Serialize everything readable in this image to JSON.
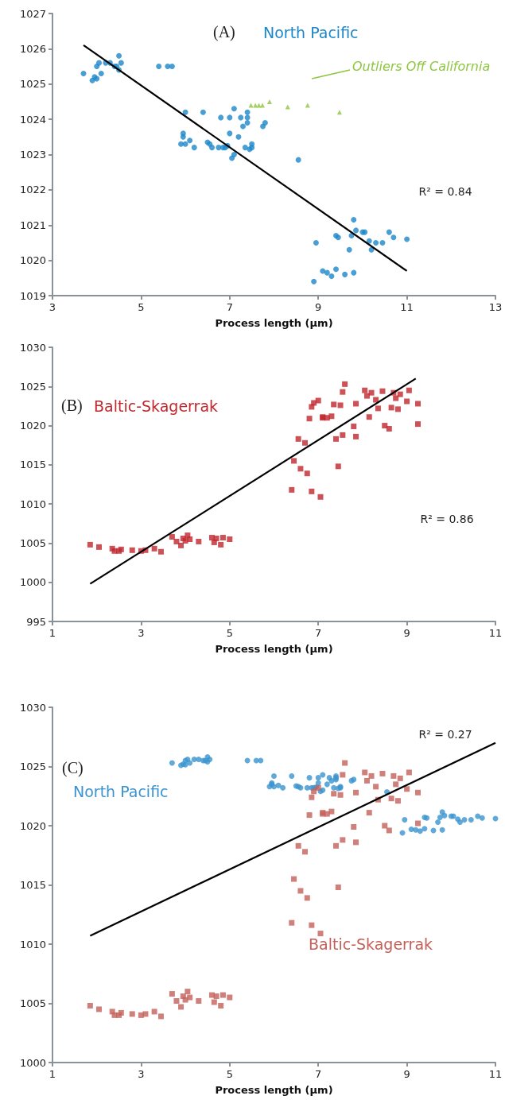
{
  "chart_data": [
    {
      "type": "scatter",
      "title": "(A)",
      "xlabel": "Process length (µm)",
      "xlim": [
        3,
        13
      ],
      "xticks": [
        3,
        5,
        7,
        9,
        11,
        13
      ],
      "ylim": [
        1019,
        1027
      ],
      "yticks": [
        1019,
        1020,
        1021,
        1022,
        1023,
        1024,
        1025,
        1026,
        1027
      ],
      "grid": false,
      "annotations": [
        "R² = 0.84"
      ],
      "series": [
        {
          "name": "North Pacific",
          "color": "#1b87c9",
          "marker": "circle",
          "x": [
            3.7,
            3.9,
            3.95,
            4.0,
            4.05,
            4.0,
            4.1,
            4.2,
            4.3,
            4.4,
            4.5,
            4.5,
            4.55,
            4.45,
            5.4,
            5.6,
            5.7,
            6.0,
            5.9,
            5.95,
            5.95,
            6.0,
            6.1,
            6.2,
            6.4,
            6.5,
            6.55,
            6.6,
            6.75,
            6.8,
            6.85,
            6.9,
            6.95,
            7.0,
            7.0,
            7.05,
            7.1,
            7.1,
            7.2,
            7.25,
            7.3,
            7.35,
            7.4,
            7.4,
            7.4,
            7.45,
            7.5,
            7.5,
            7.75,
            7.8,
            8.55,
            8.9,
            8.95,
            9.1,
            9.2,
            9.3,
            9.4,
            9.4,
            9.45,
            9.6,
            9.7,
            9.75,
            9.8,
            9.85,
            9.8,
            10.0,
            10.05,
            10.15,
            10.2,
            10.3,
            10.45,
            10.6,
            10.7,
            11.0
          ],
          "values": [
            1025.3,
            1025.1,
            1025.2,
            1025.5,
            1025.6,
            1025.15,
            1025.3,
            1025.6,
            1025.6,
            1025.5,
            1025.8,
            1025.4,
            1025.6,
            1025.5,
            1025.5,
            1025.5,
            1025.5,
            1024.2,
            1023.3,
            1023.5,
            1023.6,
            1023.3,
            1023.4,
            1023.2,
            1024.2,
            1023.35,
            1023.3,
            1023.2,
            1023.2,
            1024.05,
            1023.2,
            1023.2,
            1023.25,
            1024.05,
            1023.6,
            1022.9,
            1023.0,
            1024.3,
            1023.5,
            1024.05,
            1023.8,
            1023.2,
            1024.2,
            1024.05,
            1023.9,
            1023.15,
            1023.2,
            1023.3,
            1023.8,
            1023.9,
            1022.85,
            1019.4,
            1020.5,
            1019.7,
            1019.65,
            1019.55,
            1020.7,
            1019.75,
            1020.65,
            1019.6,
            1020.3,
            1020.7,
            1021.15,
            1020.85,
            1019.65,
            1020.8,
            1020.8,
            1020.55,
            1020.3,
            1020.5,
            1020.5,
            1020.8,
            1020.65,
            1020.6
          ]
        },
        {
          "name": "Outliers Off California",
          "color": "#8dc63f",
          "marker": "triangle",
          "x": [
            7.48,
            7.58,
            7.66,
            7.74,
            7.9,
            8.31,
            8.76,
            9.48
          ],
          "values": [
            1024.4,
            1024.4,
            1024.4,
            1024.4,
            1024.5,
            1024.35,
            1024.4,
            1024.2
          ]
        },
        {
          "type": "line",
          "color": "#000000",
          "marker": "none",
          "x": [
            3.7,
            11.0
          ],
          "values": [
            1026.1,
            1019.7
          ]
        }
      ]
    },
    {
      "type": "scatter",
      "title": "(B)",
      "xlabel": "Process length (µm)",
      "xlim": [
        1,
        11
      ],
      "xticks": [
        1,
        3,
        5,
        7,
        9,
        11
      ],
      "ylim": [
        995,
        1030
      ],
      "yticks": [
        995,
        1000,
        1005,
        1010,
        1015,
        1020,
        1025,
        1030
      ],
      "grid": false,
      "annotations": [
        "R² = 0.86"
      ],
      "series": [
        {
          "name": "Baltic-Skagerrak",
          "color": "#c1272d",
          "marker": "square",
          "x": [
            1.85,
            2.05,
            2.35,
            2.4,
            2.5,
            2.55,
            2.8,
            3.0,
            3.1,
            3.3,
            3.45,
            3.7,
            3.8,
            3.9,
            3.95,
            4.05,
            4.0,
            4.1,
            4.3,
            4.6,
            4.65,
            4.7,
            4.8,
            4.85,
            5.0,
            6.4,
            6.45,
            6.55,
            6.6,
            6.7,
            6.75,
            6.8,
            6.85,
            6.85,
            6.9,
            7.0,
            7.05,
            7.1,
            7.1,
            7.2,
            7.3,
            7.35,
            7.4,
            7.45,
            7.5,
            7.55,
            7.6,
            7.55,
            7.8,
            7.85,
            7.85,
            8.05,
            8.1,
            8.2,
            8.15,
            8.3,
            8.35,
            8.45,
            8.5,
            8.6,
            8.65,
            8.7,
            8.75,
            8.8,
            8.85,
            9.0,
            9.05,
            9.25,
            9.25
          ],
          "values": [
            1004.8,
            1004.5,
            1004.3,
            1004.0,
            1004.0,
            1004.2,
            1004.1,
            1004.0,
            1004.1,
            1004.3,
            1003.9,
            1005.8,
            1005.2,
            1004.7,
            1005.6,
            1006.0,
            1005.3,
            1005.5,
            1005.2,
            1005.7,
            1005.1,
            1005.6,
            1004.8,
            1005.7,
            1005.5,
            1011.8,
            1015.5,
            1018.3,
            1014.5,
            1017.8,
            1013.9,
            1020.9,
            1011.6,
            1022.4,
            1022.9,
            1023.2,
            1010.9,
            1021.1,
            1021.0,
            1021.0,
            1021.2,
            1022.7,
            1018.3,
            1014.8,
            1022.6,
            1024.3,
            1025.3,
            1018.8,
            1019.9,
            1022.8,
            1018.6,
            1024.5,
            1023.8,
            1024.2,
            1021.1,
            1023.3,
            1022.2,
            1024.4,
            1020.0,
            1019.6,
            1022.3,
            1024.2,
            1023.5,
            1022.1,
            1024.0,
            1023.1,
            1024.5,
            1022.8,
            1020.2
          ]
        },
        {
          "type": "line",
          "color": "#000000",
          "marker": "none",
          "x": [
            1.85,
            9.2
          ],
          "values": [
            999.8,
            1026.0
          ]
        }
      ]
    },
    {
      "type": "scatter",
      "title": "(C)",
      "xlabel": "Process length (µm)",
      "xlim": [
        1,
        11
      ],
      "xticks": [
        1,
        3,
        5,
        7,
        9,
        11
      ],
      "ylim": [
        1000,
        1030
      ],
      "yticks": [
        1000,
        1005,
        1010,
        1015,
        1020,
        1025,
        1030
      ],
      "grid": false,
      "annotations": [
        "R² = 0.27"
      ],
      "series": [
        {
          "name": "North Pacific",
          "color": "#3a93d0",
          "marker": "circle",
          "x": [
            3.7,
            3.9,
            3.95,
            4.0,
            4.05,
            4.0,
            4.1,
            4.2,
            4.3,
            4.4,
            4.5,
            4.5,
            4.55,
            4.45,
            5.4,
            5.6,
            5.7,
            6.0,
            5.9,
            5.95,
            5.95,
            6.0,
            6.1,
            6.2,
            6.4,
            6.5,
            6.55,
            6.6,
            6.75,
            6.8,
            6.85,
            6.9,
            6.95,
            7.0,
            7.0,
            7.05,
            7.1,
            7.1,
            7.2,
            7.25,
            7.3,
            7.35,
            7.4,
            7.4,
            7.4,
            7.45,
            7.5,
            7.5,
            7.75,
            7.8,
            8.55,
            8.9,
            8.95,
            9.1,
            9.2,
            9.3,
            9.4,
            9.4,
            9.45,
            9.6,
            9.7,
            9.75,
            9.8,
            9.85,
            9.8,
            10.0,
            10.05,
            10.15,
            10.2,
            10.3,
            10.45,
            10.6,
            10.7,
            11.0
          ],
          "values": [
            1025.3,
            1025.1,
            1025.2,
            1025.5,
            1025.6,
            1025.15,
            1025.3,
            1025.6,
            1025.6,
            1025.5,
            1025.8,
            1025.4,
            1025.6,
            1025.5,
            1025.5,
            1025.5,
            1025.5,
            1024.2,
            1023.3,
            1023.5,
            1023.6,
            1023.3,
            1023.4,
            1023.2,
            1024.2,
            1023.35,
            1023.3,
            1023.2,
            1023.2,
            1024.05,
            1023.2,
            1023.2,
            1023.25,
            1024.05,
            1023.6,
            1022.9,
            1023.0,
            1024.3,
            1023.5,
            1024.05,
            1023.8,
            1023.2,
            1024.2,
            1024.05,
            1023.9,
            1023.15,
            1023.2,
            1023.3,
            1023.8,
            1023.9,
            1022.85,
            1019.4,
            1020.5,
            1019.7,
            1019.65,
            1019.55,
            1020.7,
            1019.75,
            1020.65,
            1019.6,
            1020.3,
            1020.7,
            1021.15,
            1020.85,
            1019.65,
            1020.8,
            1020.8,
            1020.55,
            1020.3,
            1020.5,
            1020.5,
            1020.8,
            1020.65,
            1020.6
          ]
        },
        {
          "name": "Baltic-Skagerrak",
          "color": "#c4605a",
          "marker": "square",
          "x": [
            1.85,
            2.05,
            2.35,
            2.4,
            2.5,
            2.55,
            2.8,
            3.0,
            3.1,
            3.3,
            3.45,
            3.7,
            3.8,
            3.9,
            3.95,
            4.05,
            4.0,
            4.1,
            4.3,
            4.6,
            4.65,
            4.7,
            4.8,
            4.85,
            5.0,
            6.4,
            6.45,
            6.55,
            6.6,
            6.7,
            6.75,
            6.8,
            6.85,
            6.85,
            6.9,
            7.0,
            7.05,
            7.1,
            7.1,
            7.2,
            7.3,
            7.35,
            7.4,
            7.45,
            7.5,
            7.55,
            7.6,
            7.55,
            7.8,
            7.85,
            7.85,
            8.05,
            8.1,
            8.2,
            8.15,
            8.3,
            8.35,
            8.45,
            8.5,
            8.6,
            8.65,
            8.7,
            8.75,
            8.8,
            8.85,
            9.0,
            9.05,
            9.25,
            9.25
          ],
          "values": [
            1004.8,
            1004.5,
            1004.3,
            1004.0,
            1004.0,
            1004.2,
            1004.1,
            1004.0,
            1004.1,
            1004.3,
            1003.9,
            1005.8,
            1005.2,
            1004.7,
            1005.6,
            1006.0,
            1005.3,
            1005.5,
            1005.2,
            1005.7,
            1005.1,
            1005.6,
            1004.8,
            1005.7,
            1005.5,
            1011.8,
            1015.5,
            1018.3,
            1014.5,
            1017.8,
            1013.9,
            1020.9,
            1011.6,
            1022.4,
            1022.9,
            1023.2,
            1010.9,
            1021.1,
            1021.0,
            1021.0,
            1021.2,
            1022.7,
            1018.3,
            1014.8,
            1022.6,
            1024.3,
            1025.3,
            1018.8,
            1019.9,
            1022.8,
            1018.6,
            1024.5,
            1023.8,
            1024.2,
            1021.1,
            1023.3,
            1022.2,
            1024.4,
            1020.0,
            1019.6,
            1022.3,
            1024.2,
            1023.5,
            1022.1,
            1024.0,
            1023.1,
            1024.5,
            1022.8,
            1020.2
          ]
        },
        {
          "type": "line",
          "color": "#000000",
          "marker": "none",
          "x": [
            1.85,
            11.0
          ],
          "values": [
            1010.7,
            1027.0
          ]
        }
      ]
    }
  ]
}
